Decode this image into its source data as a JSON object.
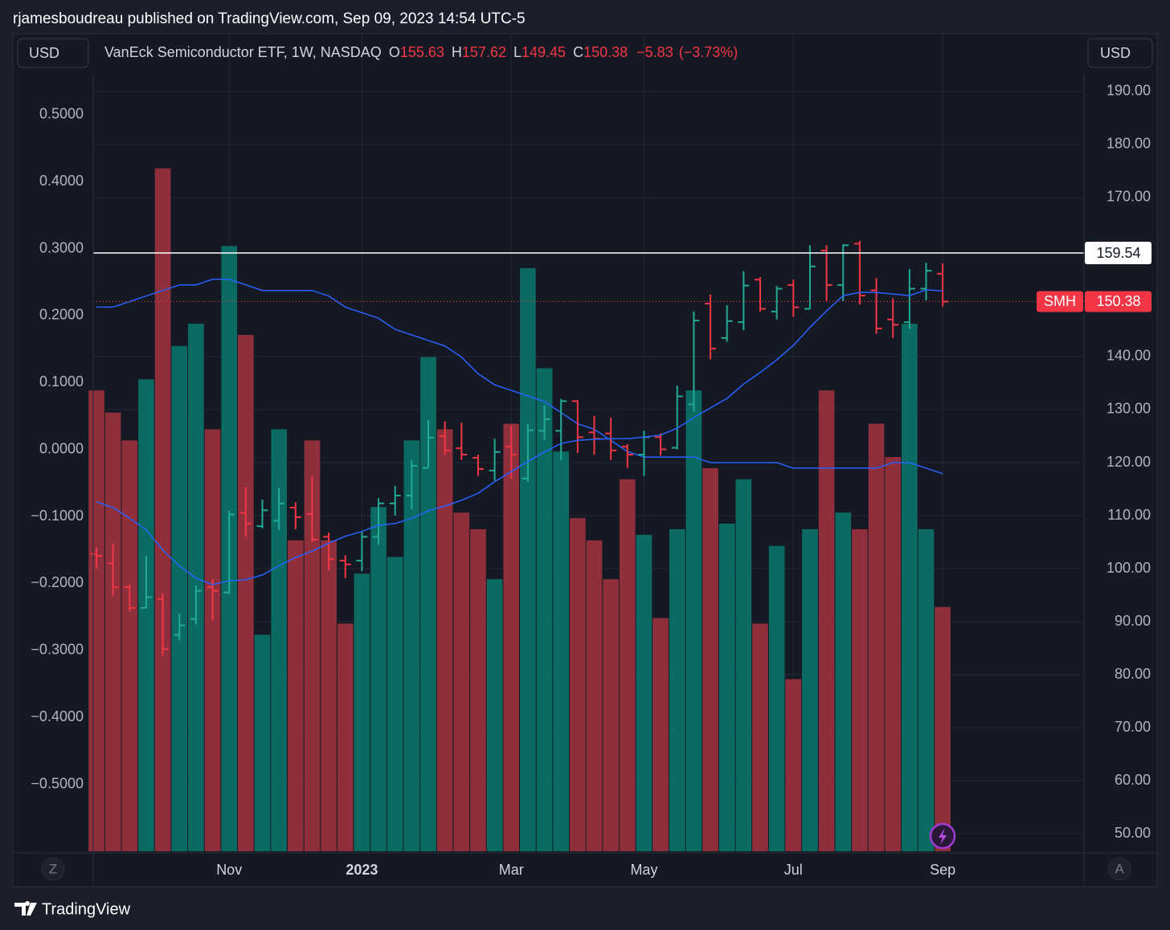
{
  "header": {
    "text": "rjamesboudreau published on TradingView.com, Sep 09, 2023 14:54 UTC-5"
  },
  "footer": {
    "brand": "TradingView"
  },
  "controls": {
    "left_currency": "USD",
    "right_currency": "USD",
    "left_button": "Z",
    "right_button": "A"
  },
  "chart_data": {
    "type": "ohlc",
    "legend": {
      "title": "VanEck Semiconductor ETF, 1W, NASDAQ",
      "o": "O",
      "h": "H",
      "l": "L",
      "c": "C"
    },
    "change": {
      "value": -5.83,
      "label": "−5.83"
    },
    "change_pct": {
      "value": -3.73,
      "label": "(−3.73%)"
    },
    "symbol": "SMH",
    "price_line": 159.54,
    "categories": [
      null,
      null,
      null,
      null,
      null,
      null,
      null,
      null,
      "Nov",
      null,
      null,
      null,
      null,
      null,
      null,
      null,
      "2023",
      null,
      null,
      null,
      null,
      null,
      null,
      null,
      null,
      "Mar",
      null,
      null,
      null,
      null,
      null,
      null,
      null,
      "May",
      null,
      null,
      null,
      null,
      null,
      null,
      null,
      null,
      "Jul",
      null,
      null,
      null,
      null,
      null,
      null,
      null,
      null,
      "Sep"
    ],
    "open": [
      102.8,
      101,
      96.5,
      92.6,
      94.3,
      87.5,
      90.5,
      96.5,
      95.5,
      110.5,
      108,
      109,
      111.5,
      110.3,
      106,
      101.5,
      101.5,
      106,
      112.3,
      113.8,
      119,
      125,
      122.7,
      120.9,
      118.5,
      123,
      117,
      126,
      126,
      131.6,
      125.7,
      125.5,
      123,
      121.5,
      124.8,
      122.8,
      131,
      150,
      143.5,
      146.5,
      154.5,
      148.5,
      153.5,
      149,
      160,
      153.5,
      161.3,
      152.5,
      147,
      146.5,
      152.8,
      155.63
    ],
    "high": [
      104,
      104.7,
      97,
      102.4,
      95.3,
      91.5,
      96.8,
      98,
      110.9,
      115.3,
      113,
      115.2,
      112.5,
      117.4,
      106.8,
      102.5,
      107,
      113.3,
      115.6,
      120.5,
      128,
      127.8,
      127.5,
      121.5,
      124.5,
      127,
      127.3,
      130.8,
      132,
      131.8,
      128.8,
      128.5,
      123.5,
      126,
      125.5,
      134.5,
      148.5,
      151.7,
      149.7,
      156.1,
      155,
      153.3,
      154.5,
      161,
      161,
      161.2,
      161.8,
      154.8,
      151,
      156.5,
      157.7,
      157.62
    ],
    "low": [
      100,
      94.8,
      92,
      92.5,
      83.5,
      86.5,
      89.5,
      90.2,
      95.2,
      106,
      107.6,
      107.3,
      107.4,
      105,
      99.7,
      98.2,
      99.5,
      104.5,
      110,
      111.2,
      119,
      121.5,
      120.5,
      117.5,
      116.6,
      117,
      116.4,
      124.3,
      120.5,
      121.8,
      121.5,
      120.5,
      119,
      117.5,
      121.3,
      122.5,
      129.6,
      139.5,
      142.8,
      145,
      148.5,
      147,
      147.5,
      149,
      150.5,
      150.5,
      149.8,
      144.3,
      143.5,
      145.2,
      150.6,
      149.45
    ],
    "close": [
      102.4,
      96.5,
      92.6,
      94.6,
      84.8,
      89.3,
      95.8,
      95.8,
      110.2,
      108.5,
      111,
      112.3,
      109.7,
      105.5,
      101.8,
      100.8,
      106,
      112.3,
      113.8,
      119.4,
      124.7,
      122.3,
      121.5,
      118.8,
      122,
      121.5,
      126.1,
      128.2,
      131.6,
      124.8,
      124.5,
      122.3,
      121.5,
      124.8,
      122.5,
      132.5,
      146.8,
      141.5,
      146.7,
      153.4,
      149,
      152.8,
      149.3,
      157,
      153.5,
      161,
      151.5,
      145.3,
      146,
      152.8,
      156.2,
      150.38
    ],
    "ma": [
      112.6,
      111.5,
      109.5,
      107.3,
      103.5,
      100.5,
      98.2,
      97,
      97.7,
      97.9,
      98.8,
      100.5,
      102.1,
      103.3,
      104.8,
      106.1,
      107,
      108.2,
      108.5,
      109.5,
      110.9,
      111.8,
      112.9,
      114.2,
      116.4,
      118.3,
      120.2,
      122,
      123.6,
      124.2,
      124.4,
      124.5,
      124.5,
      124.8,
      125.2,
      126.5,
      128.5,
      130.3,
      132.1,
      134.8,
      137,
      139.4,
      142.1,
      145.5,
      148.6,
      151.5,
      152.1,
      152.1,
      151.8,
      151.5,
      152.6,
      152.4
    ],
    "volume": [
      8.3,
      7.9,
      7.4,
      8.5,
      12.3,
      9.1,
      9.5,
      7.6,
      10.9,
      9.3,
      3.9,
      7.6,
      5.6,
      7.4,
      5.6,
      4.1,
      5,
      6.2,
      5.3,
      7.4,
      8.9,
      7.6,
      6.1,
      5.8,
      4.9,
      7.7,
      10.5,
      8.7,
      7.2,
      6,
      5.6,
      4.9,
      6.7,
      5.7,
      4.2,
      5.8,
      8.3,
      6.9,
      5.9,
      6.7,
      4.1,
      5.5,
      3.1,
      5.8,
      8.3,
      6.1,
      5.8,
      7.7,
      7.1,
      9.5,
      5.8,
      4.4
    ],
    "volume_ma": [
      9.8,
      9.8,
      9.9,
      10,
      10.1,
      10.2,
      10.2,
      10.3,
      10.3,
      10.2,
      10.1,
      10.1,
      10.1,
      10.1,
      10,
      9.8,
      9.7,
      9.6,
      9.4,
      9.3,
      9.2,
      9.1,
      8.9,
      8.6,
      8.4,
      8.3,
      8.2,
      8.1,
      7.9,
      7.7,
      7.6,
      7.4,
      7.2,
      7.1,
      7.1,
      7.1,
      7.1,
      7,
      7,
      7,
      7,
      7,
      6.9,
      6.9,
      6.9,
      6.9,
      6.9,
      6.9,
      7,
      7,
      6.9,
      6.8
    ],
    "vlim": [
      0,
      14
    ],
    "ylim": [
      46.67,
      193.33
    ],
    "yticks": [
      {
        "value": 190,
        "label": "190.00"
      },
      {
        "value": 180,
        "label": "180.00"
      },
      {
        "value": 170,
        "label": "170.00"
      },
      {
        "value": 140,
        "label": "140.00"
      },
      {
        "value": 130,
        "label": "130.00"
      },
      {
        "value": 120,
        "label": "120.00"
      },
      {
        "value": 110,
        "label": "110.00"
      },
      {
        "value": 100,
        "label": "100.00"
      },
      {
        "value": 90,
        "label": "90.00"
      },
      {
        "value": 80,
        "label": "80.00"
      },
      {
        "value": 70,
        "label": "70.00"
      },
      {
        "value": 60,
        "label": "60.00"
      },
      {
        "value": 50,
        "label": "50.00"
      }
    ],
    "y2lim": [
      -0.6,
      0.561
    ],
    "y2ticks": [
      {
        "value": 0.5,
        "label": "0.5000"
      },
      {
        "value": 0.4,
        "label": "0.4000"
      },
      {
        "value": 0.3,
        "label": "0.3000"
      },
      {
        "value": 0.2,
        "label": "0.2000"
      },
      {
        "value": 0.1,
        "label": "0.1000"
      },
      {
        "value": 0,
        "label": "0.0000"
      },
      {
        "value": -0.1,
        "label": "−0.1000"
      },
      {
        "value": -0.2,
        "label": "−0.2000"
      },
      {
        "value": -0.3,
        "label": "−0.3000"
      },
      {
        "value": -0.4,
        "label": "−0.4000"
      },
      {
        "value": -0.5,
        "label": "−0.5000"
      }
    ],
    "grid": true,
    "up_color": "#22ab94",
    "down_color": "#f23645",
    "volume_up_color": "#0b6b63",
    "volume_down_color": "#8e2f3b",
    "ma_color": "#2962ff",
    "price_line_color": "#ffffff"
  }
}
